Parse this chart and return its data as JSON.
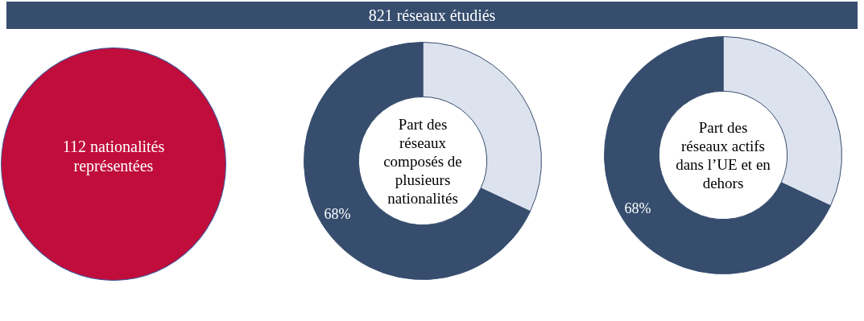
{
  "chart_data": [
    {
      "type": "other",
      "title": "821 réseaux étudiés",
      "annotations": [
        "112 nationalités représentées"
      ]
    },
    {
      "type": "donut",
      "title": "Part des réseaux composés de plusieurs nationalités",
      "categories": [
        null,
        null
      ],
      "values": [
        32,
        68
      ],
      "colors": [
        "#dde3ee",
        "#364d6e"
      ],
      "value_labels": [
        null,
        "68%"
      ]
    },
    {
      "type": "donut",
      "title": "Part des réseaux actifs dans l’UE et en dehors",
      "categories": [
        null,
        null
      ],
      "values": [
        32,
        68
      ],
      "colors": [
        "#dde3ee",
        "#364d6e"
      ],
      "value_labels": [
        null,
        "68%"
      ]
    }
  ]
}
